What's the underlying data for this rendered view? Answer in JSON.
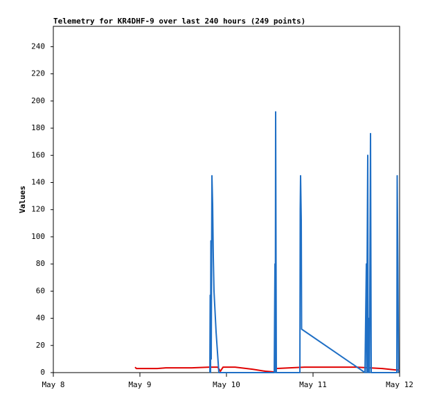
{
  "chart_data": {
    "type": "line",
    "title": "Telemetry for KR4DHF-9 over last 240 hours (249 points)",
    "y_label": "Values",
    "xlim": [
      8,
      12
    ],
    "xticks": [
      {
        "value": 8,
        "label": "May 8"
      },
      {
        "value": 9,
        "label": "May 9"
      },
      {
        "value": 10,
        "label": "May 10"
      },
      {
        "value": 11,
        "label": "May 11"
      },
      {
        "value": 12,
        "label": "May 12"
      }
    ],
    "ylim": [
      0,
      255
    ],
    "yticks": [
      0,
      20,
      40,
      60,
      80,
      100,
      120,
      140,
      160,
      180,
      200,
      220,
      240
    ],
    "grid": false,
    "series": [
      {
        "color": "#e00000",
        "x": [
          8.944,
          8.96,
          9.2,
          9.3,
          9.6,
          9.8,
          9.9,
          9.93,
          9.96,
          10.1,
          10.3,
          10.45,
          10.55,
          10.57,
          10.9,
          11.5,
          11.8,
          11.95,
          12
        ],
        "values": [
          4,
          3,
          3,
          3.5,
          3.5,
          4,
          4,
          1,
          4,
          4,
          2.5,
          1,
          0.5,
          3,
          4,
          4,
          3,
          2,
          2
        ]
      },
      {
        "color": "#1f6fc5",
        "x": [
          9.808,
          9.812,
          9.816,
          9.82,
          9.824,
          9.832,
          9.84,
          9.848,
          9.856,
          9.88,
          9.912,
          10.552,
          10.56,
          10.564,
          10.568,
          10.576,
          10.848,
          10.852,
          10.856,
          10.864,
          10.868,
          11.6,
          11.616,
          11.62,
          11.624,
          11.632,
          11.636,
          11.648,
          11.652,
          11.664,
          11.672,
          11.968,
          11.972,
          11.98,
          11.988
        ],
        "values": [
          0,
          57,
          0,
          97,
          10,
          145,
          124,
          85,
          60,
          30,
          0,
          0,
          80,
          0,
          192,
          0,
          0,
          120,
          145,
          112,
          32,
          0,
          80,
          0,
          72,
          160,
          0,
          40,
          0,
          176,
          0,
          0,
          145,
          80,
          0
        ]
      }
    ]
  }
}
